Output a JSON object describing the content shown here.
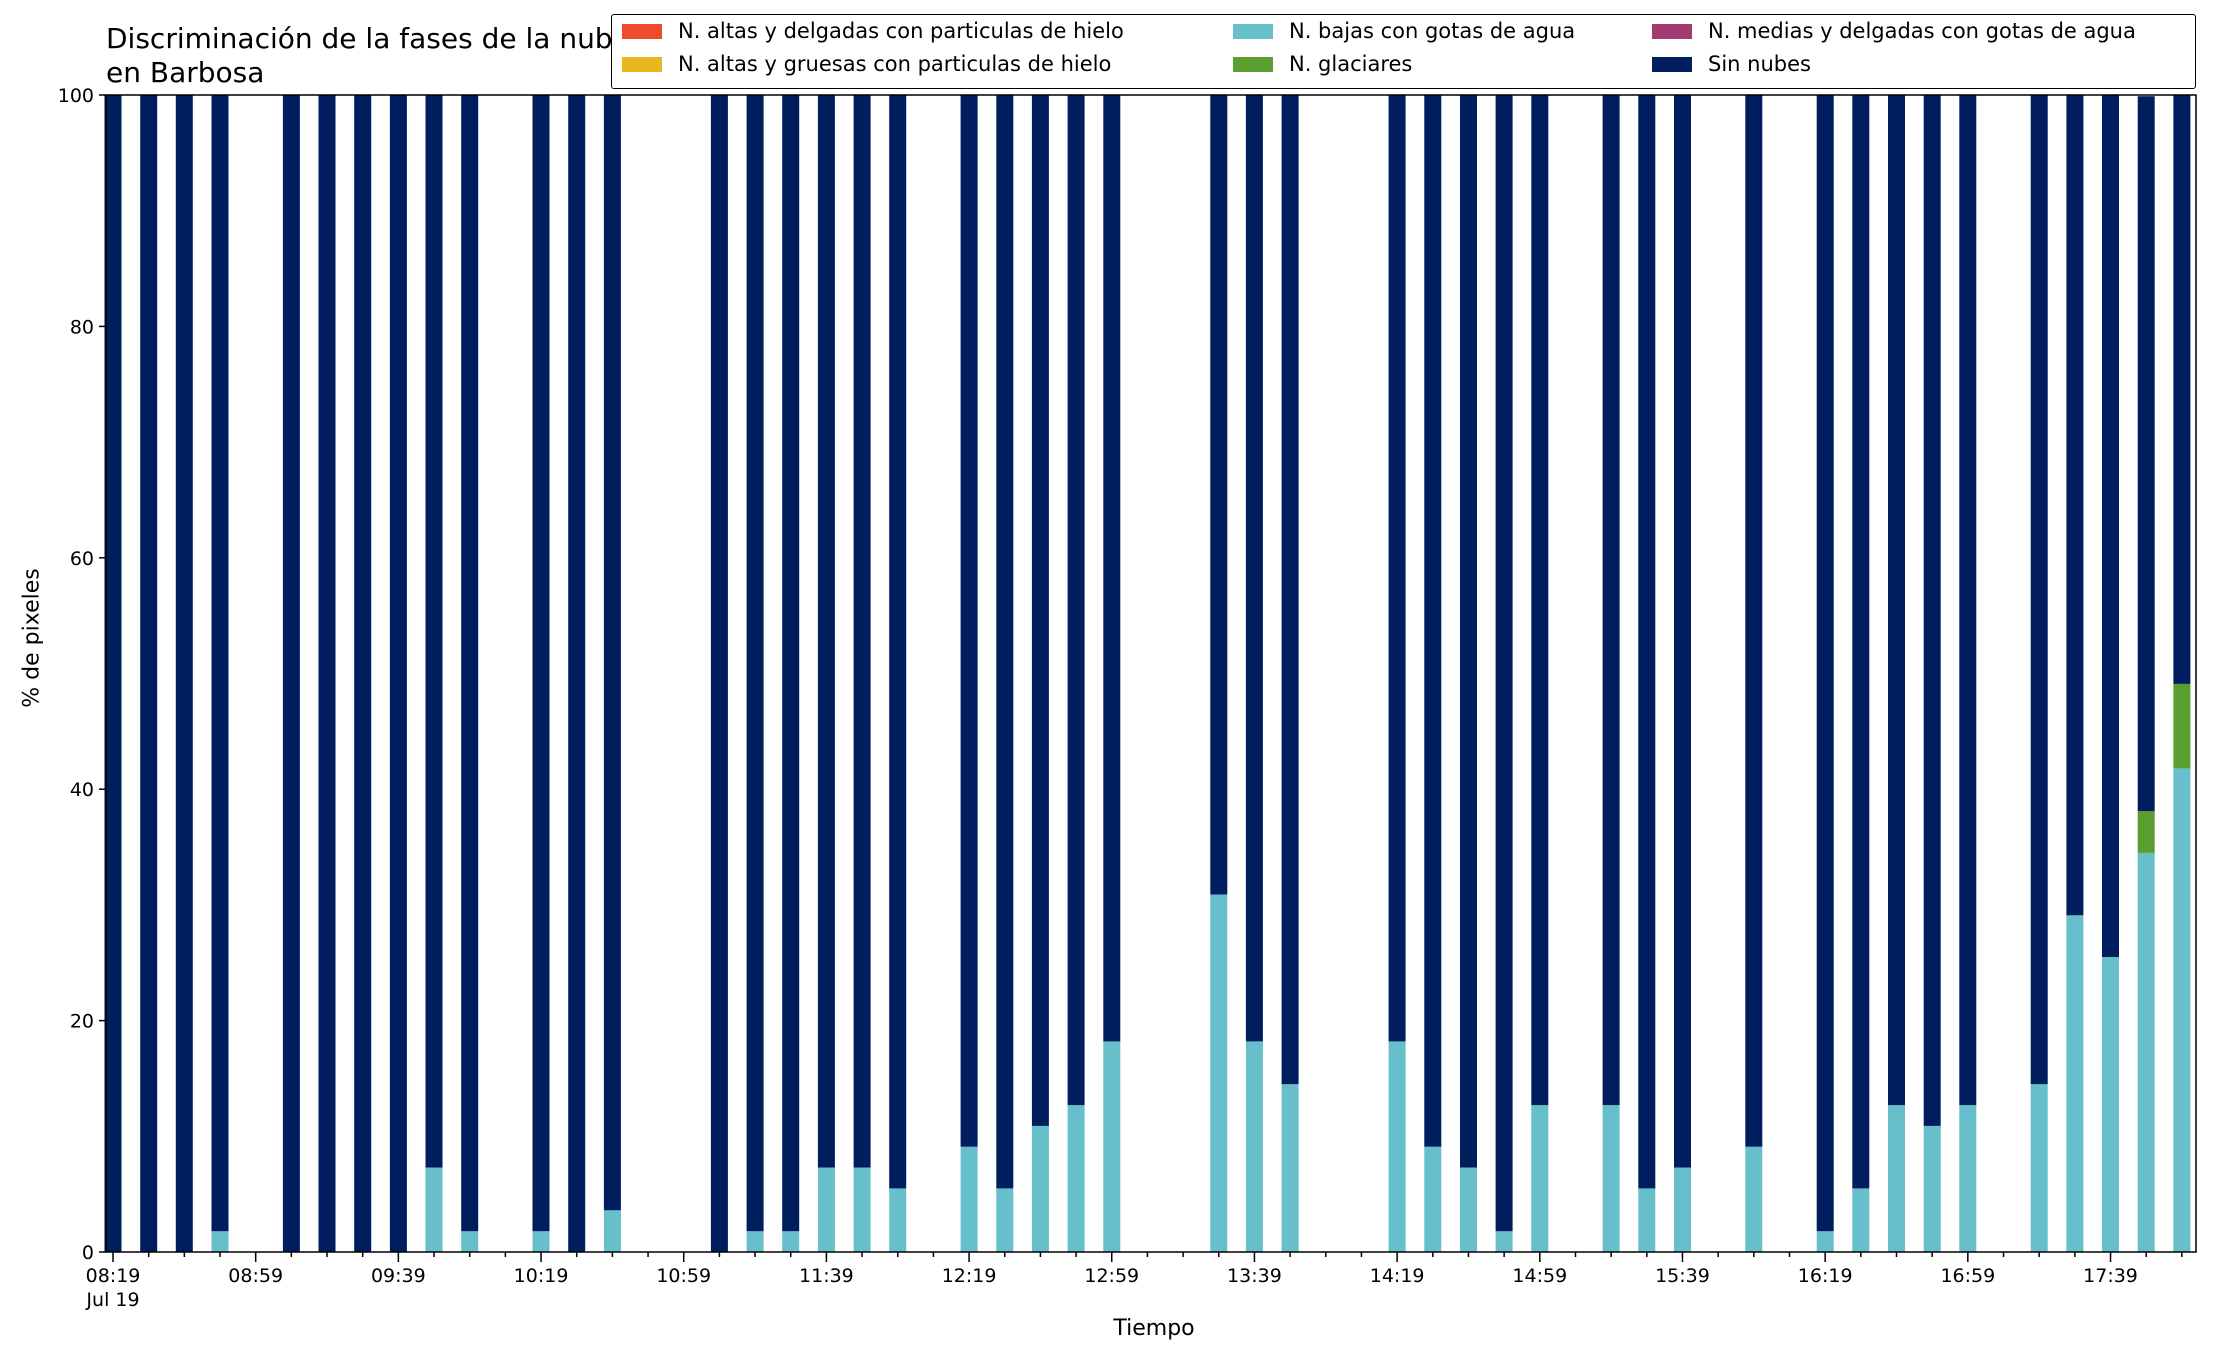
{
  "chart_data": {
    "type": "bar",
    "stacked": true,
    "title": "Discriminación de la fases de la nube en Barbosa",
    "xlabel": "Tiempo",
    "ylabel": "% de pixeles",
    "ylim": [
      0,
      100
    ],
    "yticks": [
      0,
      20,
      40,
      60,
      80,
      100
    ],
    "xtick_labels": [
      "08:19",
      "08:59",
      "09:39",
      "10:19",
      "10:59",
      "11:39",
      "12:19",
      "12:59",
      "13:39",
      "14:19",
      "14:59",
      "15:39",
      "16:19",
      "16:59",
      "17:39"
    ],
    "xtick_sublabel": "Jul 19",
    "x_start_time": "08:19",
    "x_end_time": "18:01",
    "x_step_minutes": 10,
    "legend_position": "top-right",
    "series": [
      {
        "name": "N. altas y delgadas con particulas de hielo",
        "color": "#EE4B2B",
        "points": []
      },
      {
        "name": "N. altas y gruesas con particulas de hielo",
        "color": "#E6B91E",
        "points": []
      },
      {
        "name": "N. bajas con gotas de agua",
        "color": "#66BFCB",
        "points": [
          [
            "08:49",
            1.8
          ],
          [
            "09:49",
            7.3
          ],
          [
            "09:59",
            1.8
          ],
          [
            "10:19",
            1.8
          ],
          [
            "10:39",
            3.6
          ],
          [
            "11:19",
            1.8
          ],
          [
            "11:29",
            1.8
          ],
          [
            "11:39",
            7.3
          ],
          [
            "11:49",
            7.3
          ],
          [
            "11:59",
            5.5
          ],
          [
            "12:19",
            9.1
          ],
          [
            "12:29",
            5.5
          ],
          [
            "12:39",
            10.9
          ],
          [
            "12:49",
            12.7
          ],
          [
            "12:59",
            18.2
          ],
          [
            "13:29",
            30.9
          ],
          [
            "13:39",
            18.2
          ],
          [
            "13:49",
            14.5
          ],
          [
            "14:19",
            18.2
          ],
          [
            "14:29",
            9.1
          ],
          [
            "14:39",
            7.3
          ],
          [
            "14:49",
            1.8
          ],
          [
            "14:59",
            12.7
          ],
          [
            "15:19",
            12.7
          ],
          [
            "15:29",
            5.5
          ],
          [
            "15:39",
            7.3
          ],
          [
            "15:59",
            9.1
          ],
          [
            "16:19",
            1.8
          ],
          [
            "16:29",
            5.5
          ],
          [
            "16:39",
            12.7
          ],
          [
            "16:49",
            10.9
          ],
          [
            "16:59",
            12.7
          ],
          [
            "17:19",
            14.5
          ],
          [
            "17:29",
            29.1
          ],
          [
            "17:39",
            25.5
          ],
          [
            "17:49",
            34.5
          ],
          [
            "17:59",
            41.8
          ]
        ]
      },
      {
        "name": "N. glaciares",
        "color": "#5A9E2F",
        "points": [
          [
            "17:49",
            3.6
          ],
          [
            "17:59",
            7.3
          ]
        ]
      },
      {
        "name": "N. medias y delgadas con gotas de agua",
        "color": "#A23B72",
        "points": []
      },
      {
        "name": "Sin nubes",
        "color": "#001E5E",
        "points": [
          [
            "08:19",
            100
          ],
          [
            "08:29",
            100
          ],
          [
            "08:39",
            100
          ],
          [
            "08:49",
            98.2
          ],
          [
            "09:09",
            100
          ],
          [
            "09:19",
            100
          ],
          [
            "09:29",
            100
          ],
          [
            "09:39",
            100
          ],
          [
            "09:49",
            92.7
          ],
          [
            "09:59",
            98.2
          ],
          [
            "10:19",
            98.2
          ],
          [
            "10:29",
            100
          ],
          [
            "10:39",
            96.4
          ],
          [
            "11:09",
            100
          ],
          [
            "11:19",
            98.2
          ],
          [
            "11:29",
            98.2
          ],
          [
            "11:39",
            92.7
          ],
          [
            "11:49",
            92.7
          ],
          [
            "11:59",
            94.5
          ],
          [
            "12:19",
            90.9
          ],
          [
            "12:29",
            94.5
          ],
          [
            "12:39",
            89.1
          ],
          [
            "12:49",
            87.3
          ],
          [
            "12:59",
            81.8
          ],
          [
            "13:29",
            69.1
          ],
          [
            "13:39",
            81.8
          ],
          [
            "13:49",
            85.5
          ],
          [
            "14:19",
            81.8
          ],
          [
            "14:29",
            90.9
          ],
          [
            "14:39",
            92.7
          ],
          [
            "14:49",
            98.2
          ],
          [
            "14:59",
            87.3
          ],
          [
            "15:19",
            87.3
          ],
          [
            "15:29",
            94.5
          ],
          [
            "15:39",
            92.7
          ],
          [
            "15:59",
            90.9
          ],
          [
            "16:19",
            98.2
          ],
          [
            "16:29",
            94.5
          ],
          [
            "16:39",
            87.3
          ],
          [
            "16:49",
            89.1
          ],
          [
            "16:59",
            87.3
          ],
          [
            "17:19",
            85.5
          ],
          [
            "17:29",
            70.9
          ],
          [
            "17:39",
            74.5
          ],
          [
            "17:49",
            61.8
          ],
          [
            "17:59",
            50.9
          ]
        ]
      }
    ]
  },
  "legend": {
    "items": [
      {
        "label": "N. altas y delgadas con particulas de hielo",
        "color": "#EE4B2B"
      },
      {
        "label": "N. altas y gruesas con particulas de hielo",
        "color": "#E6B91E"
      },
      {
        "label": "N. bajas con gotas de agua",
        "color": "#66BFCB"
      },
      {
        "label": "N. glaciares",
        "color": "#5A9E2F"
      },
      {
        "label": "N. medias y delgadas con gotas de agua",
        "color": "#A23B72"
      },
      {
        "label": "Sin nubes",
        "color": "#001E5E"
      }
    ]
  }
}
